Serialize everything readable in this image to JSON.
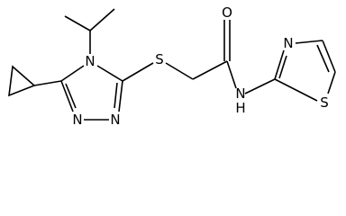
{
  "atoms": {
    "triazole_n4": "N",
    "triazole_n1": "N",
    "triazole_n2": "N",
    "thioether_s": "S",
    "carbonyl_o": "O",
    "amide_n": "N",
    "amide_h": "H",
    "thiazole_n": "N",
    "thiazole_s": "S"
  }
}
